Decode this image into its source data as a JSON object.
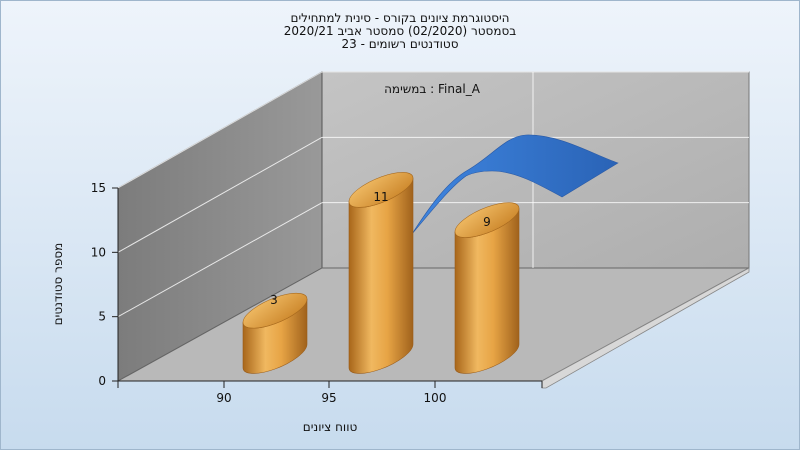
{
  "chart_data": {
    "type": "bar",
    "title_lines": [
      "היסטוגרמת ציונים בקורס - סינית למתחילים",
      "בסמסטר  (02/2020)  סמסטר אביב 2020/21",
      "סטודנטים רשומים - 23"
    ],
    "legend": "במשימה : Final_A",
    "xlabel": "טווח ציונים",
    "ylabel": "מספר סטודנטים",
    "x_ticks": [
      90,
      95,
      100
    ],
    "y_ticks": [
      0,
      5,
      10,
      15
    ],
    "ylim": [
      0,
      15
    ],
    "categories": [
      "90-95",
      "95-100",
      "100"
    ],
    "values": [
      3,
      11,
      9
    ],
    "value_labels": [
      "3",
      "11",
      "9"
    ],
    "bar_color": "#e0a24a",
    "curve_color": "#2f6fc8",
    "grid": true
  }
}
